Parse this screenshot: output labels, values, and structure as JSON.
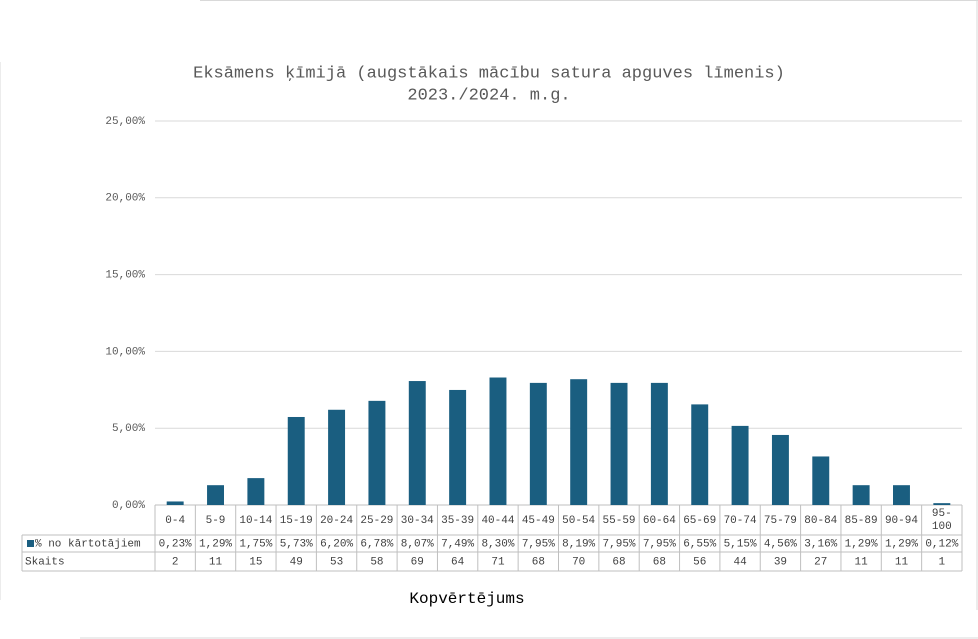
{
  "chart_data": {
    "type": "bar",
    "title": [
      "Eksāmens ķīmijā (augstākais mācību satura apguves līmenis)",
      "2023./2024. m.g."
    ],
    "x_label": "Kopvērtējums",
    "categories": [
      "0-4",
      "5-9",
      "10-14",
      "15-19",
      "20-24",
      "25-29",
      "30-34",
      "35-39",
      "40-44",
      "45-49",
      "50-54",
      "55-59",
      "60-64",
      "65-69",
      "70-74",
      "75-79",
      "80-84",
      "85-89",
      "90-94",
      "95-\n100"
    ],
    "series": [
      {
        "name": "% no kārtotājiem",
        "color": "#1a5e80",
        "values": [
          0.23,
          1.29,
          1.75,
          5.73,
          6.2,
          6.78,
          8.07,
          7.49,
          8.3,
          7.95,
          8.19,
          7.95,
          7.95,
          6.55,
          5.15,
          4.56,
          3.16,
          1.29,
          1.29,
          0.12
        ],
        "value_labels": [
          "0,23%",
          "1,29%",
          "1,75%",
          "5,73%",
          "6,20%",
          "6,78%",
          "8,07%",
          "7,49%",
          "8,30%",
          "7,95%",
          "8,19%",
          "7,95%",
          "7,95%",
          "6,55%",
          "5,15%",
          "4,56%",
          "3,16%",
          "1,29%",
          "1,29%",
          "0,12%"
        ]
      }
    ],
    "data_table_rows": [
      {
        "name": "Skaits",
        "values": [
          2,
          11,
          15,
          49,
          53,
          58,
          69,
          64,
          71,
          68,
          70,
          68,
          68,
          56,
          44,
          39,
          27,
          11,
          11,
          1
        ]
      }
    ],
    "ylim": [
      0,
      25
    ],
    "yticks": [
      {
        "value": 0,
        "label": "0,00%"
      },
      {
        "value": 5,
        "label": "5,00%"
      },
      {
        "value": 10,
        "label": "10,00%"
      },
      {
        "value": 15,
        "label": "15,00%"
      },
      {
        "value": 20,
        "label": "20,00%"
      },
      {
        "value": 25,
        "label": "25,00%"
      }
    ],
    "grid": true
  }
}
